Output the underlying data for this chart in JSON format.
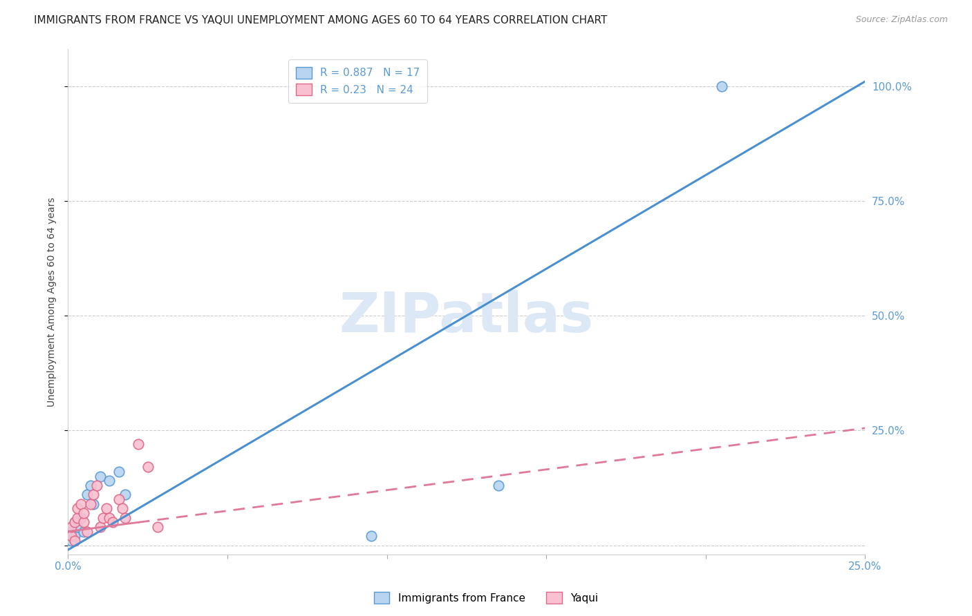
{
  "title": "IMMIGRANTS FROM FRANCE VS YAQUI UNEMPLOYMENT AMONG AGES 60 TO 64 YEARS CORRELATION CHART",
  "source": "Source: ZipAtlas.com",
  "ylabel": "Unemployment Among Ages 60 to 64 years",
  "xlim": [
    0.0,
    0.25
  ],
  "ylim": [
    -0.02,
    1.08
  ],
  "x_ticks": [
    0.0,
    0.05,
    0.1,
    0.15,
    0.2,
    0.25
  ],
  "x_tick_labels": [
    "0.0%",
    "",
    "",
    "",
    "",
    "25.0%"
  ],
  "y_ticks_right": [
    0.0,
    0.25,
    0.5,
    0.75,
    1.0
  ],
  "y_tick_labels_right": [
    "",
    "25.0%",
    "50.0%",
    "75.0%",
    "100.0%"
  ],
  "france_color": "#b8d4f0",
  "france_edge_color": "#5b9bd5",
  "yaqui_color": "#f8c0d0",
  "yaqui_edge_color": "#e06888",
  "france_line_color": "#4a90d0",
  "yaqui_line_color": "#e07898",
  "watermark_color": "#dce8f5",
  "R_france": 0.887,
  "N_france": 17,
  "R_yaqui": 0.23,
  "N_yaqui": 24,
  "france_x": [
    0.001,
    0.001,
    0.002,
    0.002,
    0.003,
    0.004,
    0.005,
    0.006,
    0.007,
    0.008,
    0.01,
    0.013,
    0.016,
    0.018,
    0.095,
    0.135,
    0.205
  ],
  "france_y": [
    0.01,
    0.03,
    0.02,
    0.05,
    0.04,
    0.06,
    0.03,
    0.11,
    0.13,
    0.09,
    0.15,
    0.14,
    0.16,
    0.11,
    0.02,
    0.13,
    1.0
  ],
  "yaqui_x": [
    0.001,
    0.001,
    0.002,
    0.002,
    0.003,
    0.003,
    0.004,
    0.005,
    0.005,
    0.006,
    0.007,
    0.008,
    0.009,
    0.01,
    0.011,
    0.012,
    0.013,
    0.014,
    0.016,
    0.017,
    0.018,
    0.022,
    0.025,
    0.028
  ],
  "yaqui_y": [
    0.02,
    0.04,
    0.01,
    0.05,
    0.06,
    0.08,
    0.09,
    0.05,
    0.07,
    0.03,
    0.09,
    0.11,
    0.13,
    0.04,
    0.06,
    0.08,
    0.06,
    0.05,
    0.1,
    0.08,
    0.06,
    0.22,
    0.17,
    0.04
  ],
  "france_regline_x": [
    0.0,
    0.25
  ],
  "france_regline_y": [
    -0.01,
    1.01
  ],
  "yaqui_regline_x": [
    0.0,
    0.25
  ],
  "yaqui_regline_y": [
    0.03,
    0.255
  ],
  "legend_france_label": "Immigrants from France",
  "legend_yaqui_label": "Yaqui",
  "background_color": "#ffffff",
  "grid_color": "#cccccc",
  "tick_color": "#5b9bd5",
  "title_fontsize": 11,
  "source_fontsize": 9,
  "axis_label_fontsize": 10,
  "tick_fontsize": 11,
  "legend_fontsize": 11
}
